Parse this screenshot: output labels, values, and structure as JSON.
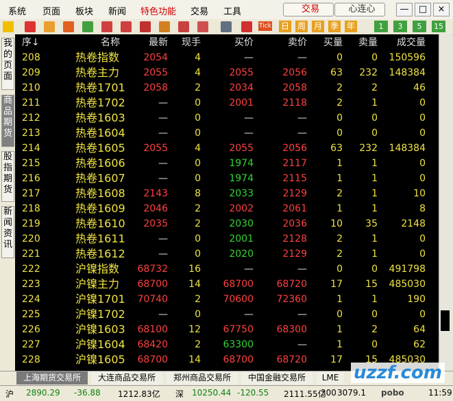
{
  "menu": [
    "系统",
    "页面",
    "板块",
    "新闻",
    "特色功能",
    "交易",
    "工具"
  ],
  "buttons": [
    "交易",
    "心连心"
  ],
  "toolbar": {
    "tick": "Tick",
    "periods": [
      "日",
      "周",
      "月",
      "季",
      "年"
    ],
    "minutes": [
      "1",
      "3",
      "5",
      "15"
    ]
  },
  "side_tabs": [
    "我的页面",
    "商品期货",
    "股指期货",
    "新闻资讯"
  ],
  "table": {
    "headers": [
      "序↓",
      "名称",
      "最新",
      "现手",
      "买价",
      "卖价",
      "买量",
      "卖量",
      "成交量"
    ],
    "palette": {
      "y": "#f0e442",
      "r": "#ff4040",
      "g": "#33d633",
      "w": "#e0e0e0"
    },
    "rows": [
      [
        "208",
        "热卷指数",
        "2054",
        "4",
        "—",
        "—",
        "0",
        "0",
        "150596"
      ],
      [
        "209",
        "热卷主力",
        "2055",
        "4",
        "2055",
        "2056",
        "63",
        "232",
        "148384"
      ],
      [
        "210",
        "热卷1701",
        "2058",
        "2",
        "2034",
        "2058",
        "2",
        "2",
        "46"
      ],
      [
        "211",
        "热卷1702",
        "—",
        "0",
        "2001",
        "2118",
        "2",
        "1",
        "0"
      ],
      [
        "212",
        "热卷1603",
        "—",
        "0",
        "—",
        "—",
        "0",
        "0",
        "0"
      ],
      [
        "213",
        "热卷1604",
        "—",
        "0",
        "—",
        "—",
        "0",
        "0",
        "0"
      ],
      [
        "214",
        "热卷1605",
        "2055",
        "4",
        "2055",
        "2056",
        "63",
        "232",
        "148384"
      ],
      [
        "215",
        "热卷1606",
        "—",
        "0",
        "1974",
        "2117",
        "1",
        "1",
        "0"
      ],
      [
        "216",
        "热卷1607",
        "—",
        "0",
        "1974",
        "2115",
        "1",
        "1",
        "0"
      ],
      [
        "217",
        "热卷1608",
        "2143",
        "8",
        "2033",
        "2129",
        "2",
        "1",
        "10"
      ],
      [
        "218",
        "热卷1609",
        "2046",
        "2",
        "2002",
        "2061",
        "1",
        "1",
        "8"
      ],
      [
        "219",
        "热卷1610",
        "2035",
        "2",
        "2030",
        "2036",
        "10",
        "35",
        "2148"
      ],
      [
        "220",
        "热卷1611",
        "—",
        "0",
        "2001",
        "2128",
        "2",
        "1",
        "0"
      ],
      [
        "221",
        "热卷1612",
        "—",
        "0",
        "2020",
        "2129",
        "2",
        "1",
        "0"
      ],
      [
        "222",
        "沪镍指数",
        "68732",
        "16",
        "—",
        "—",
        "0",
        "0",
        "491798"
      ],
      [
        "223",
        "沪镍主力",
        "68700",
        "14",
        "68700",
        "68720",
        "17",
        "15",
        "485030"
      ],
      [
        "224",
        "沪镍1701",
        "70740",
        "2",
        "70600",
        "72360",
        "1",
        "1",
        "190"
      ],
      [
        "225",
        "沪镍1702",
        "—",
        "0",
        "—",
        "—",
        "0",
        "0",
        "0"
      ],
      [
        "226",
        "沪镍1603",
        "68100",
        "12",
        "67750",
        "68300",
        "1",
        "2",
        "64"
      ],
      [
        "227",
        "沪镍1604",
        "68420",
        "2",
        "63300",
        "—",
        "1",
        "0",
        "62"
      ],
      [
        "228",
        "沪镍1605",
        "68700",
        "14",
        "68700",
        "68720",
        "17",
        "15",
        "485030"
      ]
    ],
    "row_colors": [
      "yyrywwyyy",
      "yyryrryyy",
      "yyryrryyy",
      "yywyrryyy",
      "yywywwyyy",
      "yywywwyyy",
      "yyryrryyy",
      "yywygryyy",
      "yywygryyy",
      "yyrygryyy",
      "yyryrryyy",
      "yyrygryyy",
      "yywygryyy",
      "yywygryyy",
      "yyrywwyyy",
      "yyryrryyy",
      "yyryrryyy",
      "yywywwyyy",
      "yyryrryyy",
      "yyrygwyyy",
      "yyryrryyy"
    ]
  },
  "exchange_tabs": [
    "上海期货交易所",
    "大连商品交易所",
    "郑州商品交易所",
    "中国金融交易所",
    "LME"
  ],
  "status": [
    "沪",
    "2890.29",
    "-36.88",
    "1212.83亿",
    "深",
    "10250.44",
    "-120.55",
    "2111.55亿",
    "300",
    "3079.1",
    "pobo",
    "11:59"
  ],
  "watermark": "uzzf.com"
}
